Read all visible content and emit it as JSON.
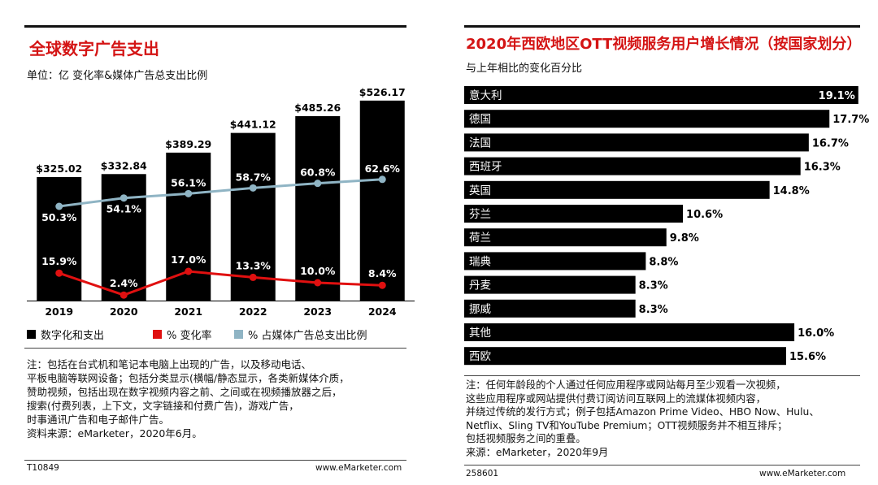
{
  "left": {
    "title": "全球数字广告支出",
    "subtitle": "单位：亿 变化率&媒体广告总支出比例",
    "legend": [
      {
        "label": "数字化和支出",
        "color": "#000000"
      },
      {
        "label": "% 变化率",
        "color": "#e01010"
      },
      {
        "label": "% 占媒体广告总支出比例",
        "color": "#8fb4c4"
      }
    ],
    "note_lines": [
      "注：包括在台式机和笔记本电脑上出现的广告，以及移动电话、",
      "平板电脑等联网设备；包括分类显示(横幅/静态显示，各类新媒体介质，",
      "赞助视频，包括出现在数字视频内容之前、之间或在视频播放器之后，",
      "搜索(付费列表，上下文，文字链接和付费广告)，游戏广告，",
      "时事通讯广告和电子邮件广告。",
      "资料来源：eMarketer，2020年6月。"
    ],
    "footer_id": "T10849",
    "footer_site": "www.eMarketer.com"
  },
  "right": {
    "title": "2020年西欧地区OTT视频服务用户增长情况（按国家划分）",
    "subtitle": "与上年相比的变化百分比",
    "note_lines": [
      "注：任何年龄段的个人通过任何应用程序或网站每月至少观看一次视频，",
      "这些应用程序或网站提供付费订阅访问互联网上的流媒体视频内容，",
      "并绕过传统的发行方式；例子包括Amazon Prime Video、HBO Now、Hulu、",
      "Netflix、Sling TV和YouTube Premium；OTT视频服务并不相互排斥；",
      "包括视频服务之间的重叠。",
      "来源：eMarketer，2020年9月"
    ],
    "footer_id": "258601",
    "footer_site": "www.eMarketer.com"
  },
  "chart_data": [
    {
      "type": "bar",
      "title": "全球数字广告支出",
      "categories": [
        "2019",
        "2020",
        "2021",
        "2022",
        "2023",
        "2024"
      ],
      "series": [
        {
          "name": "数字化和支出",
          "kind": "bar",
          "color": "#000000",
          "values": [
            325.02,
            332.84,
            389.29,
            441.12,
            485.26,
            526.17
          ],
          "labels": [
            "$325.02",
            "$332.84",
            "$389.29",
            "$441.12",
            "$485.26",
            "$526.17"
          ]
        },
        {
          "name": "% 变化率",
          "kind": "line",
          "color": "#e01010",
          "values": [
            15.9,
            2.4,
            17.0,
            13.3,
            10.0,
            8.4
          ],
          "labels": [
            "15.9%",
            "2.4%",
            "17.0%",
            "13.3%",
            "10.0%",
            "8.4%"
          ]
        },
        {
          "name": "% 占媒体广告总支出比例",
          "kind": "line",
          "color": "#8fb4c4",
          "values": [
            50.3,
            54.1,
            56.1,
            58.7,
            60.8,
            62.6
          ],
          "labels": [
            "50.3%",
            "54.1%",
            "56.1%",
            "58.7%",
            "60.8%",
            "62.6%"
          ]
        }
      ],
      "legend_position": "bottom",
      "grid": false
    },
    {
      "type": "bar",
      "orientation": "horizontal",
      "title": "2020年西欧地区OTT视频服务用户增长情况（按国家划分）",
      "categories": [
        "意大利",
        "德国",
        "法国",
        "西班牙",
        "英国",
        "芬兰",
        "荷兰",
        "瑞典",
        "丹麦",
        "挪威",
        "其他",
        "西欧"
      ],
      "values": [
        19.1,
        17.7,
        16.7,
        16.3,
        14.8,
        10.6,
        9.8,
        8.8,
        8.3,
        8.3,
        16.0,
        15.6
      ],
      "labels": [
        "19.1%",
        "17.7%",
        "16.7%",
        "16.3%",
        "14.8%",
        "10.6%",
        "9.8%",
        "8.8%",
        "8.3%",
        "8.3%",
        "16.0%",
        "15.6%"
      ],
      "value_label_inside_first": true,
      "grid": false
    }
  ]
}
